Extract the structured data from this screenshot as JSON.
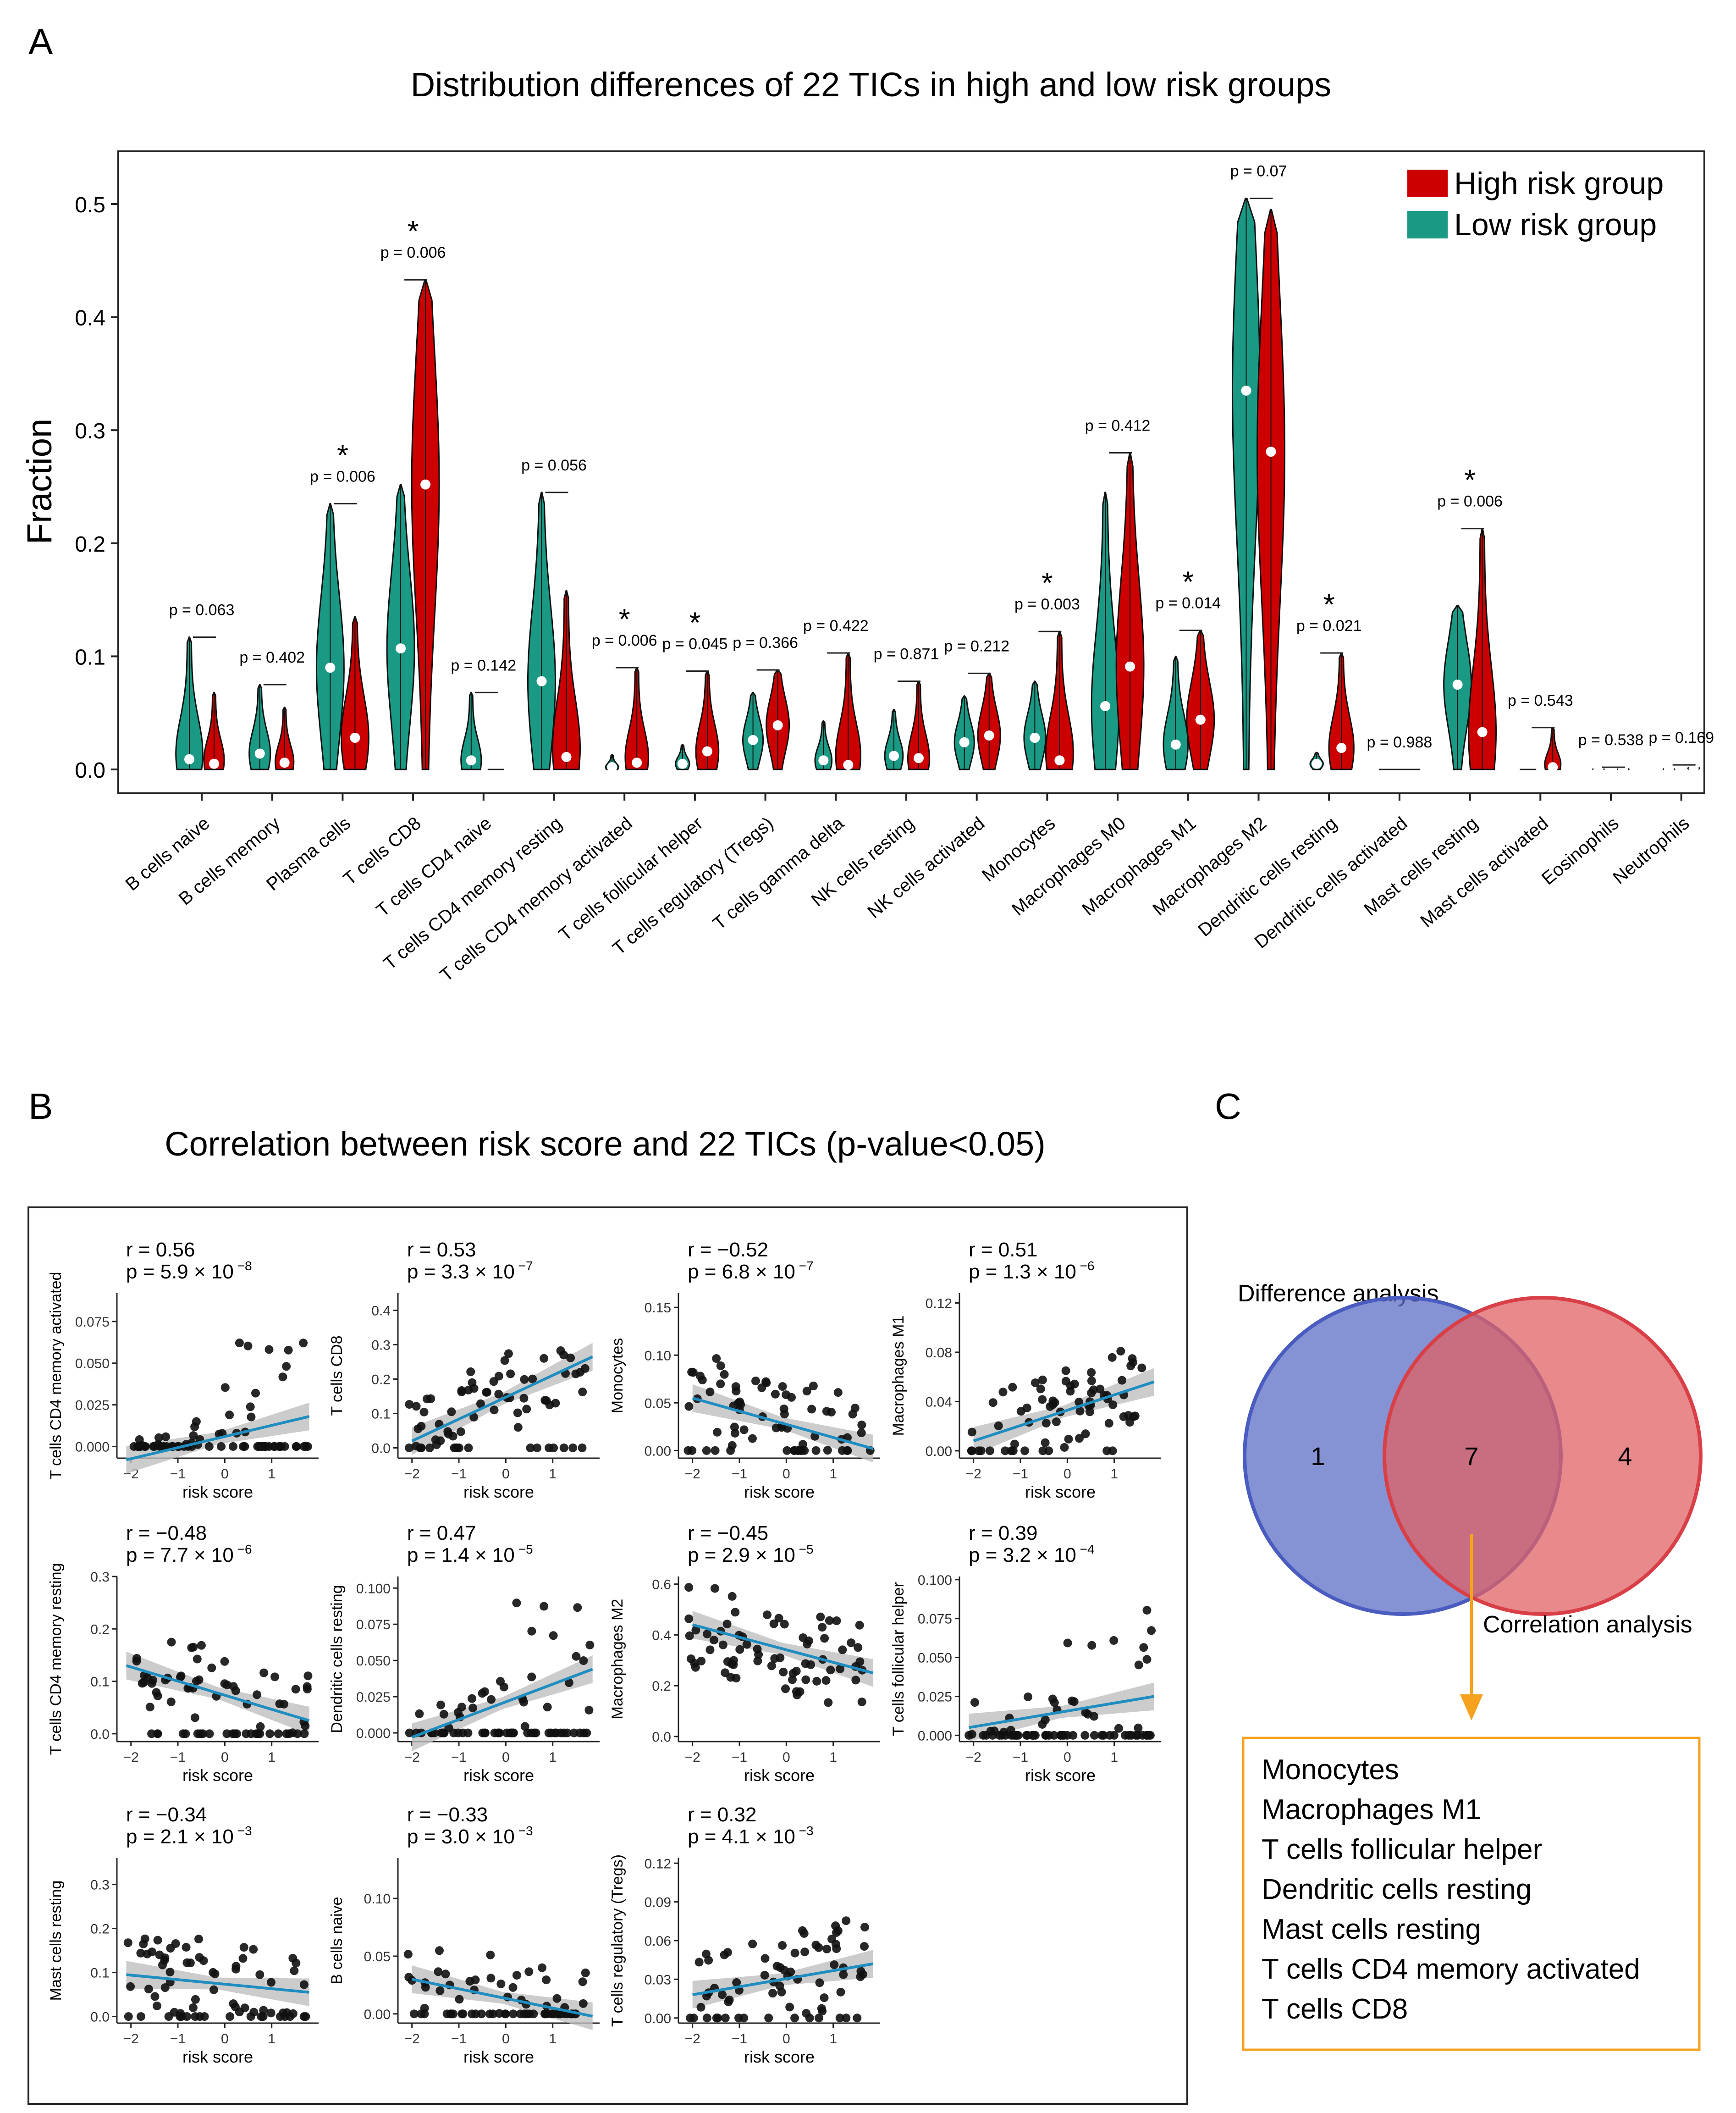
{
  "panel_labels": {
    "a": "A",
    "b": "B",
    "c": "C"
  },
  "colors": {
    "high": "#cc0000",
    "low": "#1a9a85",
    "fit": "#1f8dc0",
    "ci": "#bfbfbf",
    "arrow": "#f5a21e",
    "venn_left": "#5c6fc6",
    "venn_right": "#e06166",
    "box_border": "#f5a21e"
  },
  "chart_data": [
    {
      "id": "violin",
      "type": "violin",
      "title": "Distribution differences of 22 TICs in high and low risk groups",
      "ylabel": "Fraction",
      "ylim": [
        0,
        0.54
      ],
      "yticks": [
        0.0,
        0.1,
        0.2,
        0.3,
        0.4,
        0.5
      ],
      "ytick_labels": [
        "0.0",
        "0.1",
        "0.2",
        "0.3",
        "0.4",
        "0.5"
      ],
      "legend": [
        {
          "name": "High risk group",
          "color": "#cc0000"
        },
        {
          "name": "Low risk group",
          "color": "#1a9a85"
        }
      ],
      "legend_position": "top-right",
      "categories": [
        "B cells naive",
        "B cells memory",
        "Plasma cells",
        "T cells CD8",
        "T cells CD4 naive",
        "T cells CD4 memory resting",
        "T cells CD4 memory activated",
        "T cells follicular helper",
        "T cells regulatory (Tregs)",
        "T cells gamma delta",
        "NK cells resting",
        "NK cells activated",
        "Monocytes",
        "Macrophages M0",
        "Macrophages M1",
        "Macrophages M2",
        "Dendritic cells resting",
        "Dendritic cells activated",
        "Mast cells resting",
        "Mast cells activated",
        "Eosinophils",
        "Neutrophils"
      ],
      "p_labels": [
        "p = 0.063",
        "p = 0.402",
        "p = 0.006",
        "p = 0.006",
        "p = 0.142",
        "p = 0.056",
        "p = 0.006",
        "p = 0.045",
        "p = 0.366",
        "p = 0.422",
        "p = 0.871",
        "p = 0.212",
        "p = 0.003",
        "p = 0.412",
        "p = 0.014",
        "p = 0.07",
        "p = 0.021",
        "p = 0.988",
        "p = 0.006",
        "p = 0.543",
        "p = 0.538",
        "p = 0.169"
      ],
      "significant": [
        false,
        false,
        true,
        true,
        false,
        false,
        true,
        true,
        false,
        false,
        false,
        false,
        true,
        false,
        true,
        false,
        true,
        false,
        true,
        false,
        false,
        false
      ],
      "significance_mark": "*",
      "low_max": [
        0.117,
        0.075,
        0.235,
        0.252,
        0.068,
        0.245,
        0.013,
        0.022,
        0.068,
        0.043,
        0.053,
        0.065,
        0.078,
        0.245,
        0.1,
        0.505,
        0.015,
        0.0,
        0.145,
        0.0,
        0.002,
        0.002
      ],
      "low_median": [
        0.009,
        0.014,
        0.09,
        0.107,
        0.008,
        0.078,
        0.002,
        0.005,
        0.026,
        0.008,
        0.012,
        0.024,
        0.028,
        0.056,
        0.022,
        0.335,
        0.005,
        0.0,
        0.075,
        0.0,
        0.0,
        0.0
      ],
      "high_max": [
        0.068,
        0.055,
        0.135,
        0.433,
        0.0,
        0.158,
        0.09,
        0.087,
        0.088,
        0.103,
        0.078,
        0.085,
        0.122,
        0.28,
        0.123,
        0.495,
        0.103,
        0.0,
        0.213,
        0.037,
        0.002,
        0.004
      ],
      "high_median": [
        0.005,
        0.006,
        0.028,
        0.252,
        0.0,
        0.011,
        0.006,
        0.016,
        0.039,
        0.004,
        0.01,
        0.03,
        0.008,
        0.091,
        0.044,
        0.281,
        0.019,
        0.0,
        0.033,
        0.002,
        0.0,
        0.001
      ]
    },
    {
      "id": "scatter-grid",
      "type": "scatter",
      "title": "Correlation between risk score and 22 TICs (p-value<0.05)",
      "xlabel": "risk score",
      "xlim": [
        -2.3,
        2.0
      ],
      "xticks": [
        -2,
        -1,
        0,
        1
      ],
      "xtick_labels": [
        "−2",
        "−1",
        "0",
        "1"
      ],
      "panels": [
        {
          "ylabel": "T cells CD4 memory activated",
          "r": "r = 0.56",
          "p_text": "p = 5.9 × 10",
          "p_exp": " −8",
          "ylim": [
            -0.007,
            0.092
          ],
          "yticks": [
            0,
            0.025,
            0.05,
            0.075
          ],
          "ytick_labels": [
            "0.000",
            "0.025",
            "0.050",
            "0.075"
          ],
          "fit": [
            -2.1,
            -0.008,
            1.8,
            0.018
          ],
          "seed": 11,
          "shape": "act"
        },
        {
          "ylabel": "T cells CD8",
          "r": "r = 0.53",
          "p_text": "p = 3.3 × 10",
          "p_exp": " −7",
          "ylim": [
            -0.03,
            0.45
          ],
          "yticks": [
            0,
            0.1,
            0.2,
            0.3,
            0.4
          ],
          "ytick_labels": [
            "0.0",
            "0.1",
            "0.2",
            "0.3",
            "0.4"
          ],
          "fit": [
            -2.0,
            0.02,
            1.85,
            0.265
          ],
          "seed": 23,
          "shape": "pos"
        },
        {
          "ylabel": "Monocytes",
          "r": "r = −0.52",
          "p_text": "p = 6.8 × 10",
          "p_exp": " −7",
          "ylim": [
            -0.008,
            0.165
          ],
          "yticks": [
            0,
            0.05,
            0.1,
            0.15
          ],
          "ytick_labels": [
            "0.00",
            "0.05",
            "0.10",
            "0.15"
          ],
          "fit": [
            -2.0,
            0.055,
            1.85,
            0.002
          ],
          "seed": 37,
          "shape": "neg"
        },
        {
          "ylabel": "Macrophages M1",
          "r": "r = 0.51",
          "p_text": "p = 1.3 × 10",
          "p_exp": " −6",
          "ylim": [
            -0.006,
            0.128
          ],
          "yticks": [
            0,
            0.04,
            0.08,
            0.12
          ],
          "ytick_labels": [
            "0.00",
            "0.04",
            "0.08",
            "0.12"
          ],
          "fit": [
            -2.0,
            0.008,
            1.85,
            0.056
          ],
          "seed": 41,
          "shape": "pos"
        },
        {
          "ylabel": "T cells CD4 memory resting",
          "r": "r = −0.48",
          "p_text": "p = 7.7 × 10",
          "p_exp": " −6",
          "ylim": [
            -0.015,
            0.3
          ],
          "yticks": [
            0,
            0.1,
            0.2,
            0.3
          ],
          "ytick_labels": [
            "0.0",
            "0.1",
            "0.2",
            "0.3"
          ],
          "fit": [
            -2.1,
            0.13,
            1.8,
            0.025
          ],
          "seed": 53,
          "shape": "neg"
        },
        {
          "ylabel": "Dendritic cells resting",
          "r": "r = 0.47",
          "p_text": "p = 1.4 × 10",
          "p_exp": " −5",
          "ylim": [
            -0.006,
            0.108
          ],
          "yticks": [
            0,
            0.025,
            0.05,
            0.075,
            0.1
          ],
          "ytick_labels": [
            "0.000",
            "0.025",
            "0.050",
            "0.075",
            "0.100"
          ],
          "fit": [
            -2.0,
            -0.003,
            1.85,
            0.044
          ],
          "seed": 61,
          "shape": "act"
        },
        {
          "ylabel": "Macrophages M2",
          "r": "r = −0.45",
          "p_text": "p = 2.9 × 10",
          "p_exp": " −5",
          "ylim": [
            -0.02,
            0.63
          ],
          "yticks": [
            0,
            0.2,
            0.4,
            0.6
          ],
          "ytick_labels": [
            "0.0",
            "0.2",
            "0.4",
            "0.6"
          ],
          "fit": [
            -2.0,
            0.44,
            1.85,
            0.25
          ],
          "seed": 71,
          "shape": "m2"
        },
        {
          "ylabel": "T cells follicular helper",
          "r": "r = 0.39",
          "p_text": "p = 3.2 × 10",
          "p_exp": " −4",
          "ylim": [
            -0.004,
            0.102
          ],
          "yticks": [
            0,
            0.025,
            0.05,
            0.075,
            0.1
          ],
          "ytick_labels": [
            "0.000",
            "0.025",
            "0.050",
            "0.075",
            "0.100"
          ],
          "fit": [
            -2.1,
            0.005,
            1.85,
            0.025
          ],
          "seed": 83,
          "shape": "act"
        },
        {
          "ylabel": "Mast cells resting",
          "r": "r = −0.34",
          "p_text": "p = 2.1 × 10",
          "p_exp": " −3",
          "ylim": [
            -0.015,
            0.36
          ],
          "yticks": [
            0,
            0.1,
            0.2,
            0.3
          ],
          "ytick_labels": [
            "0.0",
            "0.1",
            "0.2",
            "0.3"
          ],
          "fit": [
            -2.1,
            0.095,
            1.8,
            0.055
          ],
          "seed": 97,
          "shape": "neg"
        },
        {
          "ylabel": "B cells naive",
          "r": "r = −0.33",
          "p_text": "p = 3.0 × 10",
          "p_exp": " −3",
          "ylim": [
            -0.008,
            0.135
          ],
          "yticks": [
            0,
            0.05,
            0.1
          ],
          "ytick_labels": [
            "0.00",
            "0.05",
            "0.10"
          ],
          "fit": [
            -2.0,
            0.03,
            1.85,
            -0.002
          ],
          "seed": 101,
          "shape": "neg"
        },
        {
          "ylabel": "T cells regulatory (Tregs)",
          "r": "r = 0.32",
          "p_text": "p = 4.1 × 10",
          "p_exp": " −3",
          "ylim": [
            -0.004,
            0.124
          ],
          "yticks": [
            0,
            0.03,
            0.06,
            0.09,
            0.12
          ],
          "ytick_labels": [
            "0.00",
            "0.03",
            "0.06",
            "0.09",
            "0.12"
          ],
          "fit": [
            -2.0,
            0.018,
            1.85,
            0.042
          ],
          "seed": 113,
          "shape": "pos"
        }
      ]
    }
  ],
  "venn": {
    "title_left": "Difference analysis",
    "title_bottom": "Correlation analysis",
    "left_only": "1",
    "overlap": "7",
    "right_only": "4",
    "overlap_list": [
      "Monocytes",
      "Macrophages M1",
      "T cells follicular helper",
      "Dendritic cells resting",
      "Mast cells resting",
      "T cells CD4 memory activated",
      "T cells CD8"
    ]
  }
}
